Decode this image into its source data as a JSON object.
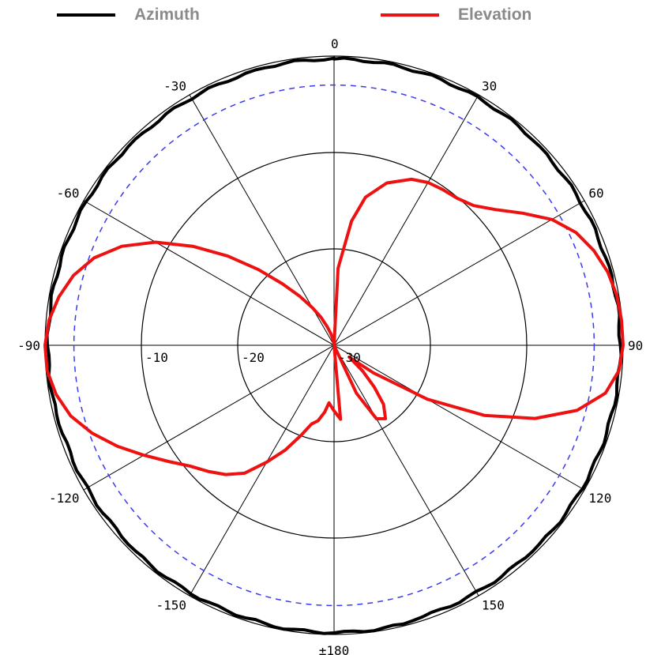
{
  "legend": {
    "azimuth": {
      "label": "Azimuth",
      "color": "#000000"
    },
    "elevation": {
      "label": "Elevation",
      "color": "#ee1111"
    }
  },
  "chart_data": {
    "type": "polar",
    "angle_unit": "degrees",
    "angle_ticks": [
      "0",
      "30",
      "60",
      "90",
      "120",
      "150",
      "±180",
      "-150",
      "-120",
      "-90",
      "-60",
      "-30"
    ],
    "radial_ticks": [
      "-10",
      "-20",
      "-30"
    ],
    "radial_range": [
      -30,
      0
    ],
    "reference_circle": {
      "value": -3,
      "style": "dashed",
      "color": "#3a3af0"
    },
    "grid": true,
    "legend_position": "top",
    "series": [
      {
        "name": "Azimuth",
        "color": "#000000",
        "angle": [
          0,
          30,
          60,
          90,
          120,
          150,
          180,
          -150,
          -120,
          -90,
          -60,
          -30
        ],
        "values": [
          -0.3,
          -0.3,
          -0.4,
          -0.3,
          -0.3,
          -0.4,
          -0.2,
          -0.3,
          -0.4,
          -0.3,
          -0.3,
          -0.4
        ]
      },
      {
        "name": "Elevation",
        "color": "#ee1111",
        "angle": [
          0,
          3,
          8,
          12,
          18,
          25,
          30,
          35,
          40,
          45,
          50,
          55,
          60,
          65,
          70,
          75,
          80,
          85,
          90,
          95,
          100,
          105,
          110,
          115,
          120,
          125,
          128,
          132,
          136,
          140,
          145,
          150,
          155,
          160,
          165,
          170,
          175,
          180,
          -175,
          -172,
          -168,
          -164,
          -160,
          -155,
          -150,
          -145,
          -140,
          -135,
          -130,
          -125,
          -120,
          -115,
          -110,
          -105,
          -100,
          -95,
          -90,
          -85,
          -80,
          -75,
          -70,
          -65,
          -60,
          -55,
          -50,
          -45,
          -40,
          -35,
          -30,
          -25,
          -20,
          -15,
          -10,
          -5,
          -2
        ],
        "values": [
          -30,
          -22,
          -17,
          -14.3,
          -12.3,
          -11,
          -10.5,
          -10.3,
          -10.1,
          -9.5,
          -8.1,
          -6.1,
          -3.9,
          -2.3,
          -1.3,
          -0.6,
          -0.2,
          -0.05,
          0,
          -0.3,
          -1.4,
          -3.9,
          -7.8,
          -12.8,
          -18.8,
          -25,
          -28,
          -26,
          -24,
          -22,
          -20.7,
          -21.2,
          -24.5,
          -30,
          -30,
          -30,
          -22.3,
          -23.2,
          -24,
          -23,
          -22,
          -21.5,
          -20.1,
          -18,
          -16,
          -13.8,
          -12.5,
          -11.5,
          -10.5,
          -9,
          -7.2,
          -5.2,
          -3.3,
          -1.7,
          -0.7,
          -0.1,
          0,
          -0.3,
          -1,
          -2,
          -3.5,
          -5.7,
          -8.6,
          -12.1,
          -15.6,
          -18.9,
          -21.7,
          -23.8,
          -25.5,
          -26.8,
          -28,
          -28.8,
          -29.4,
          -29.8,
          -30
        ]
      }
    ]
  }
}
